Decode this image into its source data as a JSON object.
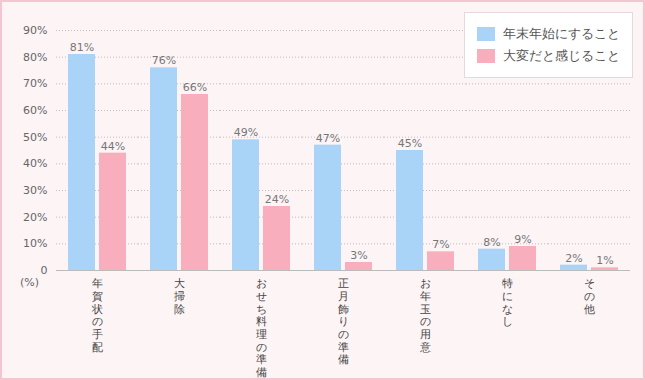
{
  "chart_data": {
    "type": "bar",
    "categories": [
      "年賀状の手配",
      "大掃除",
      "おせち料理の準備",
      "正月飾りの準備",
      "お年玉の用意",
      "特になし",
      "その他"
    ],
    "series": [
      {
        "name": "年末年始にすること",
        "color": "#a9d4f7",
        "values": [
          81,
          76,
          49,
          47,
          45,
          8,
          2
        ],
        "value_labels": [
          "81%",
          "76%",
          "49%",
          "47%",
          "45%",
          "8%",
          "2%"
        ]
      },
      {
        "name": "大変だと感じること",
        "color": "#f8aebd",
        "values": [
          44,
          66,
          24,
          3,
          7,
          9,
          1
        ],
        "value_labels": [
          "44%",
          "66%",
          "24%",
          "3%",
          "7%",
          "9%",
          "1%"
        ]
      }
    ],
    "ylabel": "(%)",
    "ylim": [
      0,
      90
    ],
    "yticks": [
      0,
      {
        "value": 10,
        "label": "10%"
      },
      {
        "value": 20,
        "label": "20%"
      },
      {
        "value": 30,
        "label": "30%"
      },
      {
        "value": 40,
        "label": "40%"
      },
      {
        "value": 50,
        "label": "50%"
      },
      {
        "value": 60,
        "label": "60%"
      },
      {
        "value": 70,
        "label": "70%"
      },
      {
        "value": 80,
        "label": "80%"
      },
      {
        "value": 90,
        "label": "90%"
      }
    ],
    "grid": true,
    "legend": "top-right",
    "data_labels": true
  }
}
